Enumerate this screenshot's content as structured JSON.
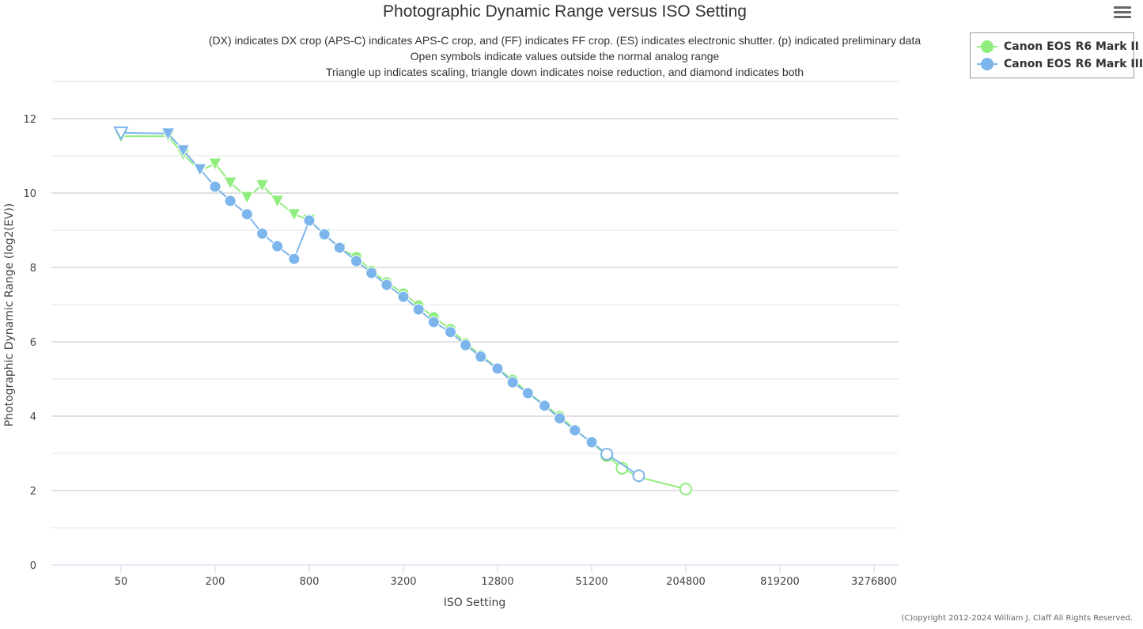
{
  "menu_icon": "hamburger-menu-icon",
  "copyright": "(C)opyright 2012-2024 William J. Claff All Rights Reserved.",
  "chart_data": {
    "type": "line",
    "title": "Photographic Dynamic Range versus ISO Setting",
    "subtitle": [
      "(DX) indicates DX crop (APS-C) indicates APS-C crop, and (FF) indicates FF crop. (ES) indicates electronic shutter. (p) indicated preliminary data",
      "Open symbols indicate values outside the normal analog range",
      "Triangle up indicates scaling, triangle down indicates noise reduction, and diamond indicates both"
    ],
    "xlabel": "ISO Setting",
    "ylabel": "Photographic Dynamic Range (log2(EV))",
    "x_scale": "log2",
    "x_ticks": [
      50,
      200,
      800,
      3200,
      12800,
      51200,
      204800,
      819200,
      3276800
    ],
    "y_ticks": [
      0,
      2,
      4,
      6,
      8,
      10,
      12
    ],
    "ylim": [
      0,
      13
    ],
    "grid": true,
    "legend_position": "top-right",
    "series": [
      {
        "name": "Canon EOS R6 Mark II",
        "color": "#90ed7d",
        "points": [
          {
            "x": 50,
            "y": 11.53,
            "m": "tri-down"
          },
          {
            "x": 100,
            "y": 11.53,
            "m": "tri-down"
          },
          {
            "x": 125,
            "y": 11.04,
            "m": "tri-down"
          },
          {
            "x": 160,
            "y": 10.6,
            "m": "tri-down"
          },
          {
            "x": 200,
            "y": 10.79,
            "m": "tri-down"
          },
          {
            "x": 250,
            "y": 10.28,
            "m": "tri-down"
          },
          {
            "x": 320,
            "y": 9.89,
            "m": "tri-down"
          },
          {
            "x": 400,
            "y": 10.21,
            "m": "tri-down"
          },
          {
            "x": 500,
            "y": 9.79,
            "m": "tri-down"
          },
          {
            "x": 640,
            "y": 9.43,
            "m": "tri-down"
          },
          {
            "x": 800,
            "y": 9.28,
            "m": "tri-down"
          },
          {
            "x": 1000,
            "y": 8.89,
            "m": "tri-down"
          },
          {
            "x": 1250,
            "y": 8.51,
            "m": "tri-down"
          },
          {
            "x": 1600,
            "y": 8.28,
            "m": "circle"
          },
          {
            "x": 2000,
            "y": 7.91,
            "m": "circle"
          },
          {
            "x": 2500,
            "y": 7.6,
            "m": "circle"
          },
          {
            "x": 3200,
            "y": 7.3,
            "m": "circle"
          },
          {
            "x": 4000,
            "y": 6.98,
            "m": "circle"
          },
          {
            "x": 5000,
            "y": 6.66,
            "m": "circle"
          },
          {
            "x": 6400,
            "y": 6.34,
            "m": "circle"
          },
          {
            "x": 8000,
            "y": 5.96,
            "m": "circle"
          },
          {
            "x": 10000,
            "y": 5.64,
            "m": "circle"
          },
          {
            "x": 12800,
            "y": 5.28,
            "m": "circle"
          },
          {
            "x": 16000,
            "y": 4.98,
            "m": "circle"
          },
          {
            "x": 20000,
            "y": 4.64,
            "m": "circle"
          },
          {
            "x": 25600,
            "y": 4.3,
            "m": "circle"
          },
          {
            "x": 32000,
            "y": 4.0,
            "m": "circle"
          },
          {
            "x": 40000,
            "y": 3.64,
            "m": "circle"
          },
          {
            "x": 51200,
            "y": 3.28,
            "m": "circle"
          },
          {
            "x": 64000,
            "y": 2.94,
            "m": "circle-open"
          },
          {
            "x": 80000,
            "y": 2.6,
            "m": "circle-open"
          },
          {
            "x": 102400,
            "y": 2.36,
            "m": "circle"
          },
          {
            "x": 204800,
            "y": 2.04,
            "m": "circle-open"
          }
        ]
      },
      {
        "name": "Canon EOS R6 Mark III",
        "color": "#7cb5ec",
        "points": [
          {
            "x": 50,
            "y": 11.62,
            "m": "tri-down-open"
          },
          {
            "x": 100,
            "y": 11.6,
            "m": "tri-down"
          },
          {
            "x": 125,
            "y": 11.15,
            "m": "tri-down"
          },
          {
            "x": 160,
            "y": 10.64,
            "m": "tri-down"
          },
          {
            "x": 200,
            "y": 10.17,
            "m": "circle"
          },
          {
            "x": 250,
            "y": 9.79,
            "m": "circle"
          },
          {
            "x": 320,
            "y": 9.43,
            "m": "circle"
          },
          {
            "x": 400,
            "y": 8.91,
            "m": "circle"
          },
          {
            "x": 500,
            "y": 8.57,
            "m": "circle"
          },
          {
            "x": 640,
            "y": 8.23,
            "m": "circle"
          },
          {
            "x": 800,
            "y": 9.26,
            "m": "circle"
          },
          {
            "x": 1000,
            "y": 8.89,
            "m": "circle"
          },
          {
            "x": 1250,
            "y": 8.53,
            "m": "circle"
          },
          {
            "x": 1600,
            "y": 8.17,
            "m": "circle"
          },
          {
            "x": 2000,
            "y": 7.85,
            "m": "circle"
          },
          {
            "x": 2500,
            "y": 7.53,
            "m": "circle"
          },
          {
            "x": 3200,
            "y": 7.21,
            "m": "circle"
          },
          {
            "x": 4000,
            "y": 6.87,
            "m": "circle"
          },
          {
            "x": 5000,
            "y": 6.53,
            "m": "circle"
          },
          {
            "x": 6400,
            "y": 6.26,
            "m": "circle"
          },
          {
            "x": 8000,
            "y": 5.91,
            "m": "circle"
          },
          {
            "x": 10000,
            "y": 5.6,
            "m": "circle"
          },
          {
            "x": 12800,
            "y": 5.28,
            "m": "circle"
          },
          {
            "x": 16000,
            "y": 4.91,
            "m": "circle"
          },
          {
            "x": 20000,
            "y": 4.62,
            "m": "circle"
          },
          {
            "x": 25600,
            "y": 4.28,
            "m": "circle"
          },
          {
            "x": 32000,
            "y": 3.94,
            "m": "circle"
          },
          {
            "x": 40000,
            "y": 3.62,
            "m": "circle"
          },
          {
            "x": 51200,
            "y": 3.3,
            "m": "circle"
          },
          {
            "x": 64000,
            "y": 2.98,
            "m": "circle-open"
          },
          {
            "x": 102400,
            "y": 2.4,
            "m": "circle-open"
          }
        ]
      }
    ]
  }
}
